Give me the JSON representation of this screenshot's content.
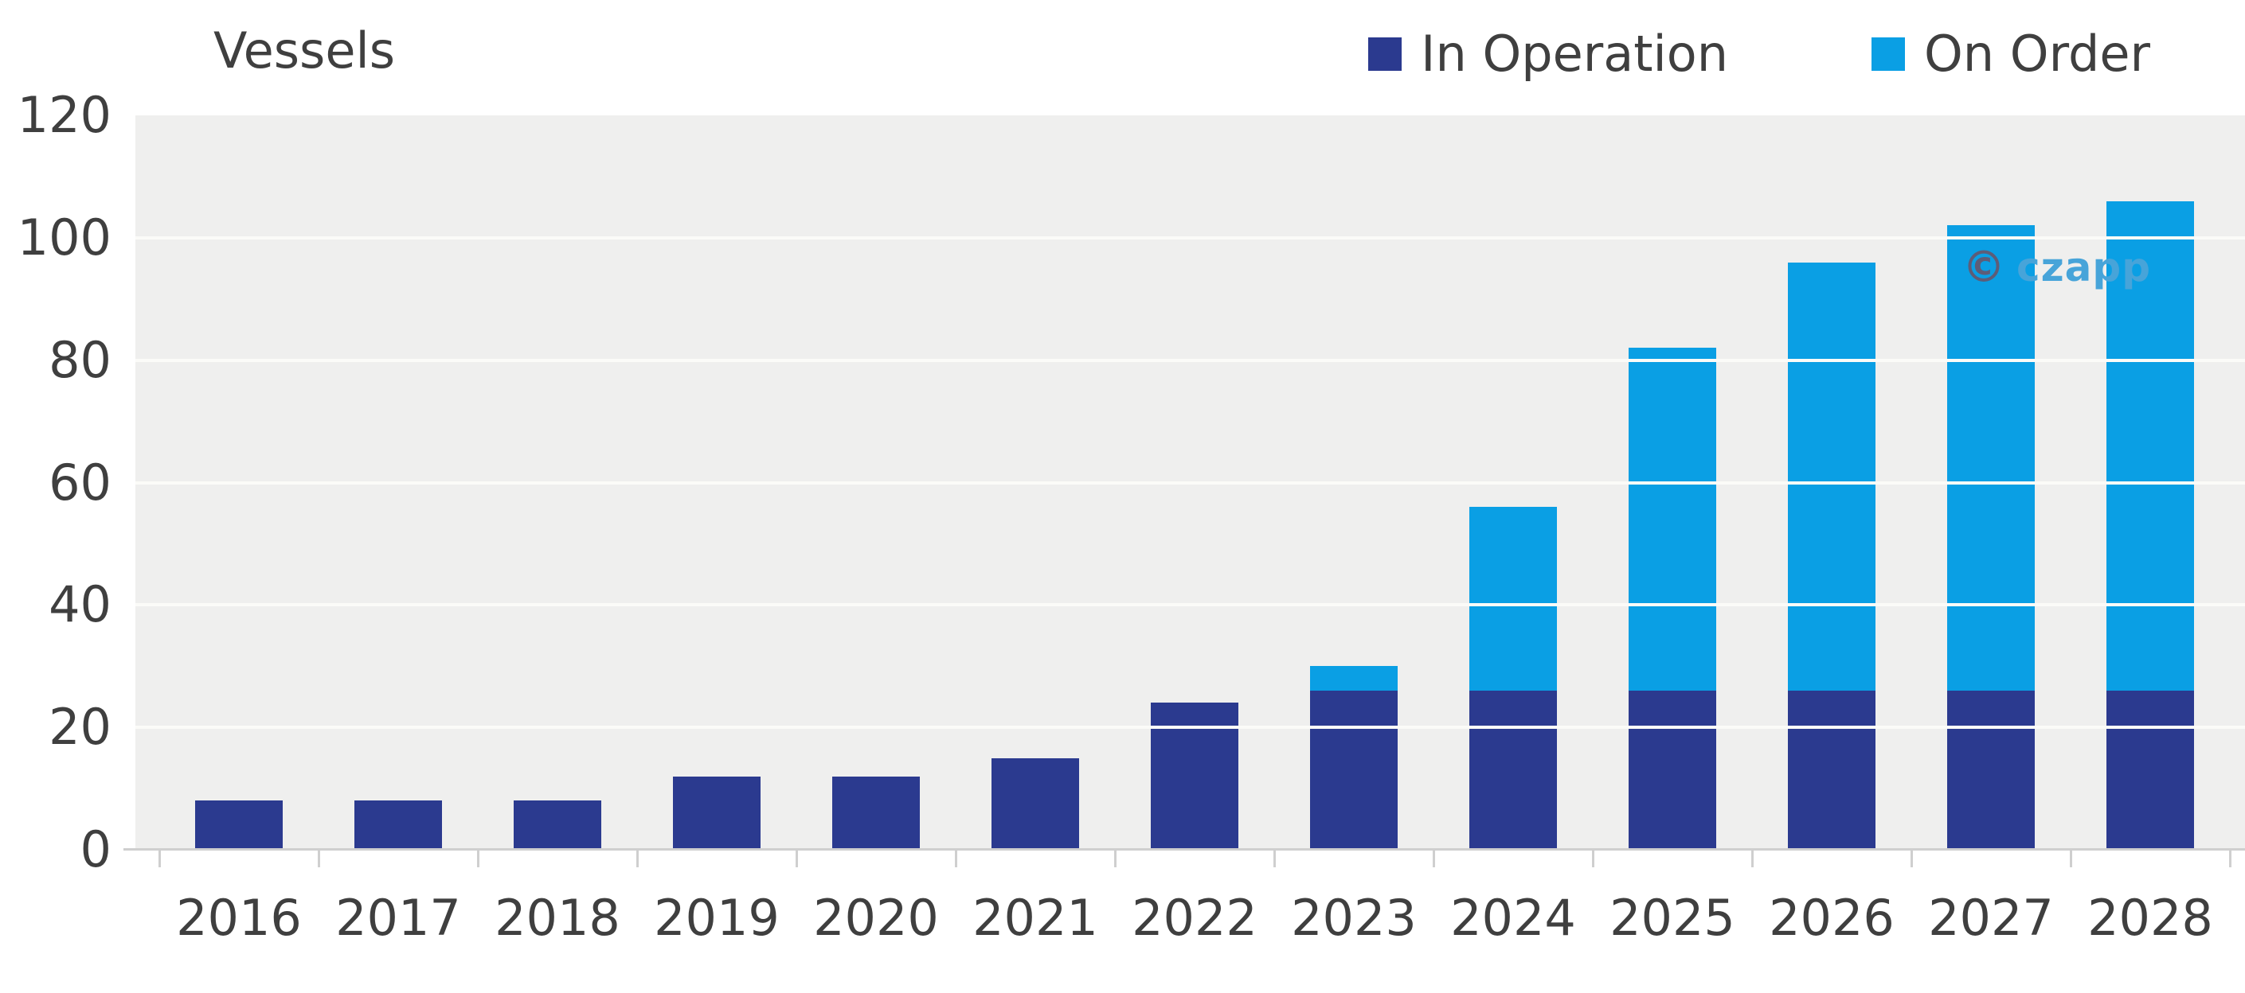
{
  "title": "Vessels",
  "legend": {
    "items": [
      {
        "label": "In Operation",
        "color": "#2b3a8f"
      },
      {
        "label": "On Order",
        "color": "#0a9fe4"
      }
    ]
  },
  "watermark": {
    "symbol": "©",
    "text": "czapp"
  },
  "colors": {
    "text": "#3f3f3f",
    "plot_background": "#efefee",
    "gridline": "#fbfbf8",
    "axis": "#cfcfcf",
    "in_operation": "#2b3a8f",
    "on_order": "#0a9fe4",
    "watermark_blue": "#47a4d9"
  },
  "chart_data": {
    "type": "bar",
    "stacked": true,
    "title": "Vessels",
    "ylabel": "Vessels",
    "xlabel": "",
    "categories": [
      "2016",
      "2017",
      "2018",
      "2019",
      "2020",
      "2021",
      "2022",
      "2023",
      "2024",
      "2025",
      "2026",
      "2027",
      "2028"
    ],
    "series": [
      {
        "name": "In Operation",
        "color": "#2b3a8f",
        "values": [
          8,
          8,
          8,
          12,
          12,
          15,
          24,
          26,
          26,
          26,
          26,
          26,
          26
        ]
      },
      {
        "name": "On Order",
        "color": "#0a9fe4",
        "values": [
          0,
          0,
          0,
          0,
          0,
          0,
          0,
          4,
          30,
          56,
          70,
          76,
          80
        ]
      }
    ],
    "totals": [
      8,
      8,
      8,
      12,
      12,
      15,
      24,
      30,
      56,
      82,
      96,
      102,
      106
    ],
    "ylim": [
      0,
      120
    ],
    "yticks": [
      0,
      20,
      40,
      60,
      80,
      100,
      120
    ],
    "grid": true,
    "legend_position": "top-right",
    "plot_background": "#efefee"
  }
}
